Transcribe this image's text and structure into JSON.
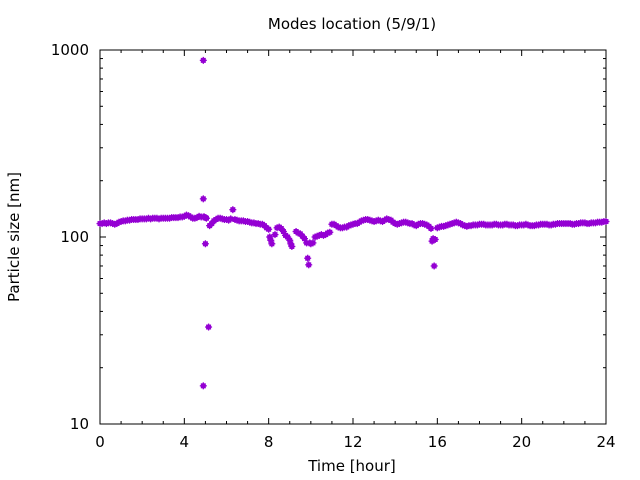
{
  "chart_data": {
    "type": "scatter",
    "title": "Modes location (5/9/1)",
    "xlabel": "Time [hour]",
    "ylabel": "Particle size [nm]",
    "xlim": [
      0,
      24
    ],
    "ylim": [
      10,
      1000
    ],
    "yscale": "log",
    "xticks": [
      0,
      4,
      8,
      12,
      16,
      20,
      24
    ],
    "yticks": [
      10,
      100,
      1000
    ],
    "grid": false,
    "marker_color": "#9400d3",
    "series": [
      {
        "points": [
          [
            0.0,
            118
          ],
          [
            0.1,
            118
          ],
          [
            0.2,
            119
          ],
          [
            0.3,
            118
          ],
          [
            0.4,
            119
          ],
          [
            0.5,
            119
          ],
          [
            0.6,
            118
          ],
          [
            0.7,
            117
          ],
          [
            0.8,
            118
          ],
          [
            0.9,
            120
          ],
          [
            1.0,
            121
          ],
          [
            1.1,
            122
          ],
          [
            1.2,
            122
          ],
          [
            1.3,
            123
          ],
          [
            1.4,
            123
          ],
          [
            1.5,
            124
          ],
          [
            1.6,
            124
          ],
          [
            1.7,
            124
          ],
          [
            1.8,
            124
          ],
          [
            1.9,
            125
          ],
          [
            2.0,
            125
          ],
          [
            2.1,
            125
          ],
          [
            2.2,
            125
          ],
          [
            2.3,
            126
          ],
          [
            2.4,
            125
          ],
          [
            2.5,
            126
          ],
          [
            2.6,
            126
          ],
          [
            2.7,
            126
          ],
          [
            2.8,
            125
          ],
          [
            2.9,
            126
          ],
          [
            3.0,
            126
          ],
          [
            3.1,
            126
          ],
          [
            3.2,
            126
          ],
          [
            3.3,
            126
          ],
          [
            3.4,
            127
          ],
          [
            3.5,
            127
          ],
          [
            3.6,
            127
          ],
          [
            3.7,
            127
          ],
          [
            3.8,
            128
          ],
          [
            3.9,
            128
          ],
          [
            4.0,
            129
          ],
          [
            4.1,
            131
          ],
          [
            4.2,
            130
          ],
          [
            4.3,
            128
          ],
          [
            4.4,
            126
          ],
          [
            4.5,
            126
          ],
          [
            4.6,
            127
          ],
          [
            4.7,
            129
          ],
          [
            4.8,
            128
          ],
          [
            4.9,
            128
          ],
          [
            4.9,
            880
          ],
          [
            4.9,
            160
          ],
          [
            4.9,
            16
          ],
          [
            4.95,
            128
          ],
          [
            5.0,
            127
          ],
          [
            5.0,
            92
          ],
          [
            5.05,
            126
          ],
          [
            5.15,
            33
          ],
          [
            5.2,
            115
          ],
          [
            5.3,
            118
          ],
          [
            5.4,
            122
          ],
          [
            5.5,
            124
          ],
          [
            5.6,
            126
          ],
          [
            5.7,
            126
          ],
          [
            5.8,
            125
          ],
          [
            5.9,
            124
          ],
          [
            6.0,
            124
          ],
          [
            6.1,
            123
          ],
          [
            6.2,
            125
          ],
          [
            6.3,
            140
          ],
          [
            6.4,
            124
          ],
          [
            6.5,
            123
          ],
          [
            6.6,
            122
          ],
          [
            6.7,
            122
          ],
          [
            6.8,
            122
          ],
          [
            6.9,
            121
          ],
          [
            7.0,
            121
          ],
          [
            7.1,
            120
          ],
          [
            7.2,
            119
          ],
          [
            7.3,
            119
          ],
          [
            7.4,
            118
          ],
          [
            7.5,
            118
          ],
          [
            7.6,
            117
          ],
          [
            7.7,
            117
          ],
          [
            7.8,
            115
          ],
          [
            7.9,
            112
          ],
          [
            8.0,
            110
          ],
          [
            8.05,
            100
          ],
          [
            8.1,
            96
          ],
          [
            8.15,
            92
          ],
          [
            8.3,
            103
          ],
          [
            8.4,
            112
          ],
          [
            8.5,
            113
          ],
          [
            8.6,
            111
          ],
          [
            8.7,
            107
          ],
          [
            8.8,
            102
          ],
          [
            8.9,
            100
          ],
          [
            9.0,
            96
          ],
          [
            9.05,
            92
          ],
          [
            9.1,
            89
          ],
          [
            9.3,
            107
          ],
          [
            9.4,
            105
          ],
          [
            9.5,
            104
          ],
          [
            9.6,
            101
          ],
          [
            9.7,
            98
          ],
          [
            9.8,
            93
          ],
          [
            9.85,
            77
          ],
          [
            9.9,
            71
          ],
          [
            9.95,
            93
          ],
          [
            10.0,
            92
          ],
          [
            10.1,
            93
          ],
          [
            10.2,
            100
          ],
          [
            10.3,
            101
          ],
          [
            10.4,
            102
          ],
          [
            10.5,
            103
          ],
          [
            10.6,
            102
          ],
          [
            10.7,
            103
          ],
          [
            10.8,
            105
          ],
          [
            10.9,
            106
          ],
          [
            11.0,
            117
          ],
          [
            11.1,
            117
          ],
          [
            11.2,
            115
          ],
          [
            11.3,
            113
          ],
          [
            11.4,
            112
          ],
          [
            11.5,
            112
          ],
          [
            11.6,
            113
          ],
          [
            11.7,
            113
          ],
          [
            11.8,
            115
          ],
          [
            11.9,
            116
          ],
          [
            12.0,
            117
          ],
          [
            12.1,
            118
          ],
          [
            12.2,
            118
          ],
          [
            12.3,
            120
          ],
          [
            12.4,
            122
          ],
          [
            12.5,
            123
          ],
          [
            12.6,
            124
          ],
          [
            12.7,
            124
          ],
          [
            12.8,
            123
          ],
          [
            12.9,
            122
          ],
          [
            13.0,
            121
          ],
          [
            13.1,
            122
          ],
          [
            13.2,
            123
          ],
          [
            13.3,
            122
          ],
          [
            13.4,
            121
          ],
          [
            13.5,
            123
          ],
          [
            13.6,
            125
          ],
          [
            13.7,
            124
          ],
          [
            13.8,
            123
          ],
          [
            13.9,
            120
          ],
          [
            14.0,
            118
          ],
          [
            14.1,
            117
          ],
          [
            14.2,
            118
          ],
          [
            14.3,
            119
          ],
          [
            14.4,
            120
          ],
          [
            14.5,
            120
          ],
          [
            14.6,
            119
          ],
          [
            14.7,
            118
          ],
          [
            14.8,
            118
          ],
          [
            14.9,
            116
          ],
          [
            15.0,
            115
          ],
          [
            15.1,
            117
          ],
          [
            15.2,
            118
          ],
          [
            15.3,
            118
          ],
          [
            15.4,
            117
          ],
          [
            15.5,
            116
          ],
          [
            15.6,
            114
          ],
          [
            15.7,
            111
          ],
          [
            15.75,
            95
          ],
          [
            15.8,
            98
          ],
          [
            15.85,
            70
          ],
          [
            15.9,
            97
          ],
          [
            16.0,
            112
          ],
          [
            16.1,
            113
          ],
          [
            16.2,
            114
          ],
          [
            16.3,
            114
          ],
          [
            16.4,
            115
          ],
          [
            16.5,
            116
          ],
          [
            16.6,
            117
          ],
          [
            16.7,
            118
          ],
          [
            16.8,
            119
          ],
          [
            16.9,
            120
          ],
          [
            17.0,
            119
          ],
          [
            17.1,
            118
          ],
          [
            17.2,
            116
          ],
          [
            17.3,
            115
          ],
          [
            17.4,
            114
          ],
          [
            17.5,
            115
          ],
          [
            17.6,
            115
          ],
          [
            17.7,
            116
          ],
          [
            17.8,
            116
          ],
          [
            17.9,
            116
          ],
          [
            18.0,
            117
          ],
          [
            18.1,
            117
          ],
          [
            18.2,
            117
          ],
          [
            18.3,
            116
          ],
          [
            18.4,
            116
          ],
          [
            18.5,
            116
          ],
          [
            18.6,
            116
          ],
          [
            18.7,
            117
          ],
          [
            18.8,
            117
          ],
          [
            18.9,
            116
          ],
          [
            19.0,
            116
          ],
          [
            19.1,
            116
          ],
          [
            19.2,
            117
          ],
          [
            19.3,
            117
          ],
          [
            19.4,
            116
          ],
          [
            19.5,
            116
          ],
          [
            19.6,
            116
          ],
          [
            19.7,
            115
          ],
          [
            19.8,
            115
          ],
          [
            19.9,
            116
          ],
          [
            20.0,
            116
          ],
          [
            20.1,
            116
          ],
          [
            20.2,
            117
          ],
          [
            20.3,
            116
          ],
          [
            20.4,
            115
          ],
          [
            20.5,
            115
          ],
          [
            20.6,
            115
          ],
          [
            20.7,
            116
          ],
          [
            20.8,
            116
          ],
          [
            20.9,
            117
          ],
          [
            21.0,
            117
          ],
          [
            21.1,
            117
          ],
          [
            21.2,
            117
          ],
          [
            21.3,
            116
          ],
          [
            21.4,
            116
          ],
          [
            21.5,
            117
          ],
          [
            21.6,
            117
          ],
          [
            21.7,
            118
          ],
          [
            21.8,
            118
          ],
          [
            21.9,
            118
          ],
          [
            22.0,
            118
          ],
          [
            22.1,
            118
          ],
          [
            22.2,
            118
          ],
          [
            22.3,
            118
          ],
          [
            22.4,
            117
          ],
          [
            22.5,
            117
          ],
          [
            22.6,
            118
          ],
          [
            22.7,
            118
          ],
          [
            22.8,
            119
          ],
          [
            22.9,
            119
          ],
          [
            23.0,
            119
          ],
          [
            23.1,
            118
          ],
          [
            23.2,
            118
          ],
          [
            23.3,
            119
          ],
          [
            23.4,
            119
          ],
          [
            23.5,
            119
          ],
          [
            23.6,
            120
          ],
          [
            23.7,
            120
          ],
          [
            23.8,
            120
          ],
          [
            23.9,
            121
          ],
          [
            24.0,
            121
          ]
        ]
      }
    ]
  }
}
